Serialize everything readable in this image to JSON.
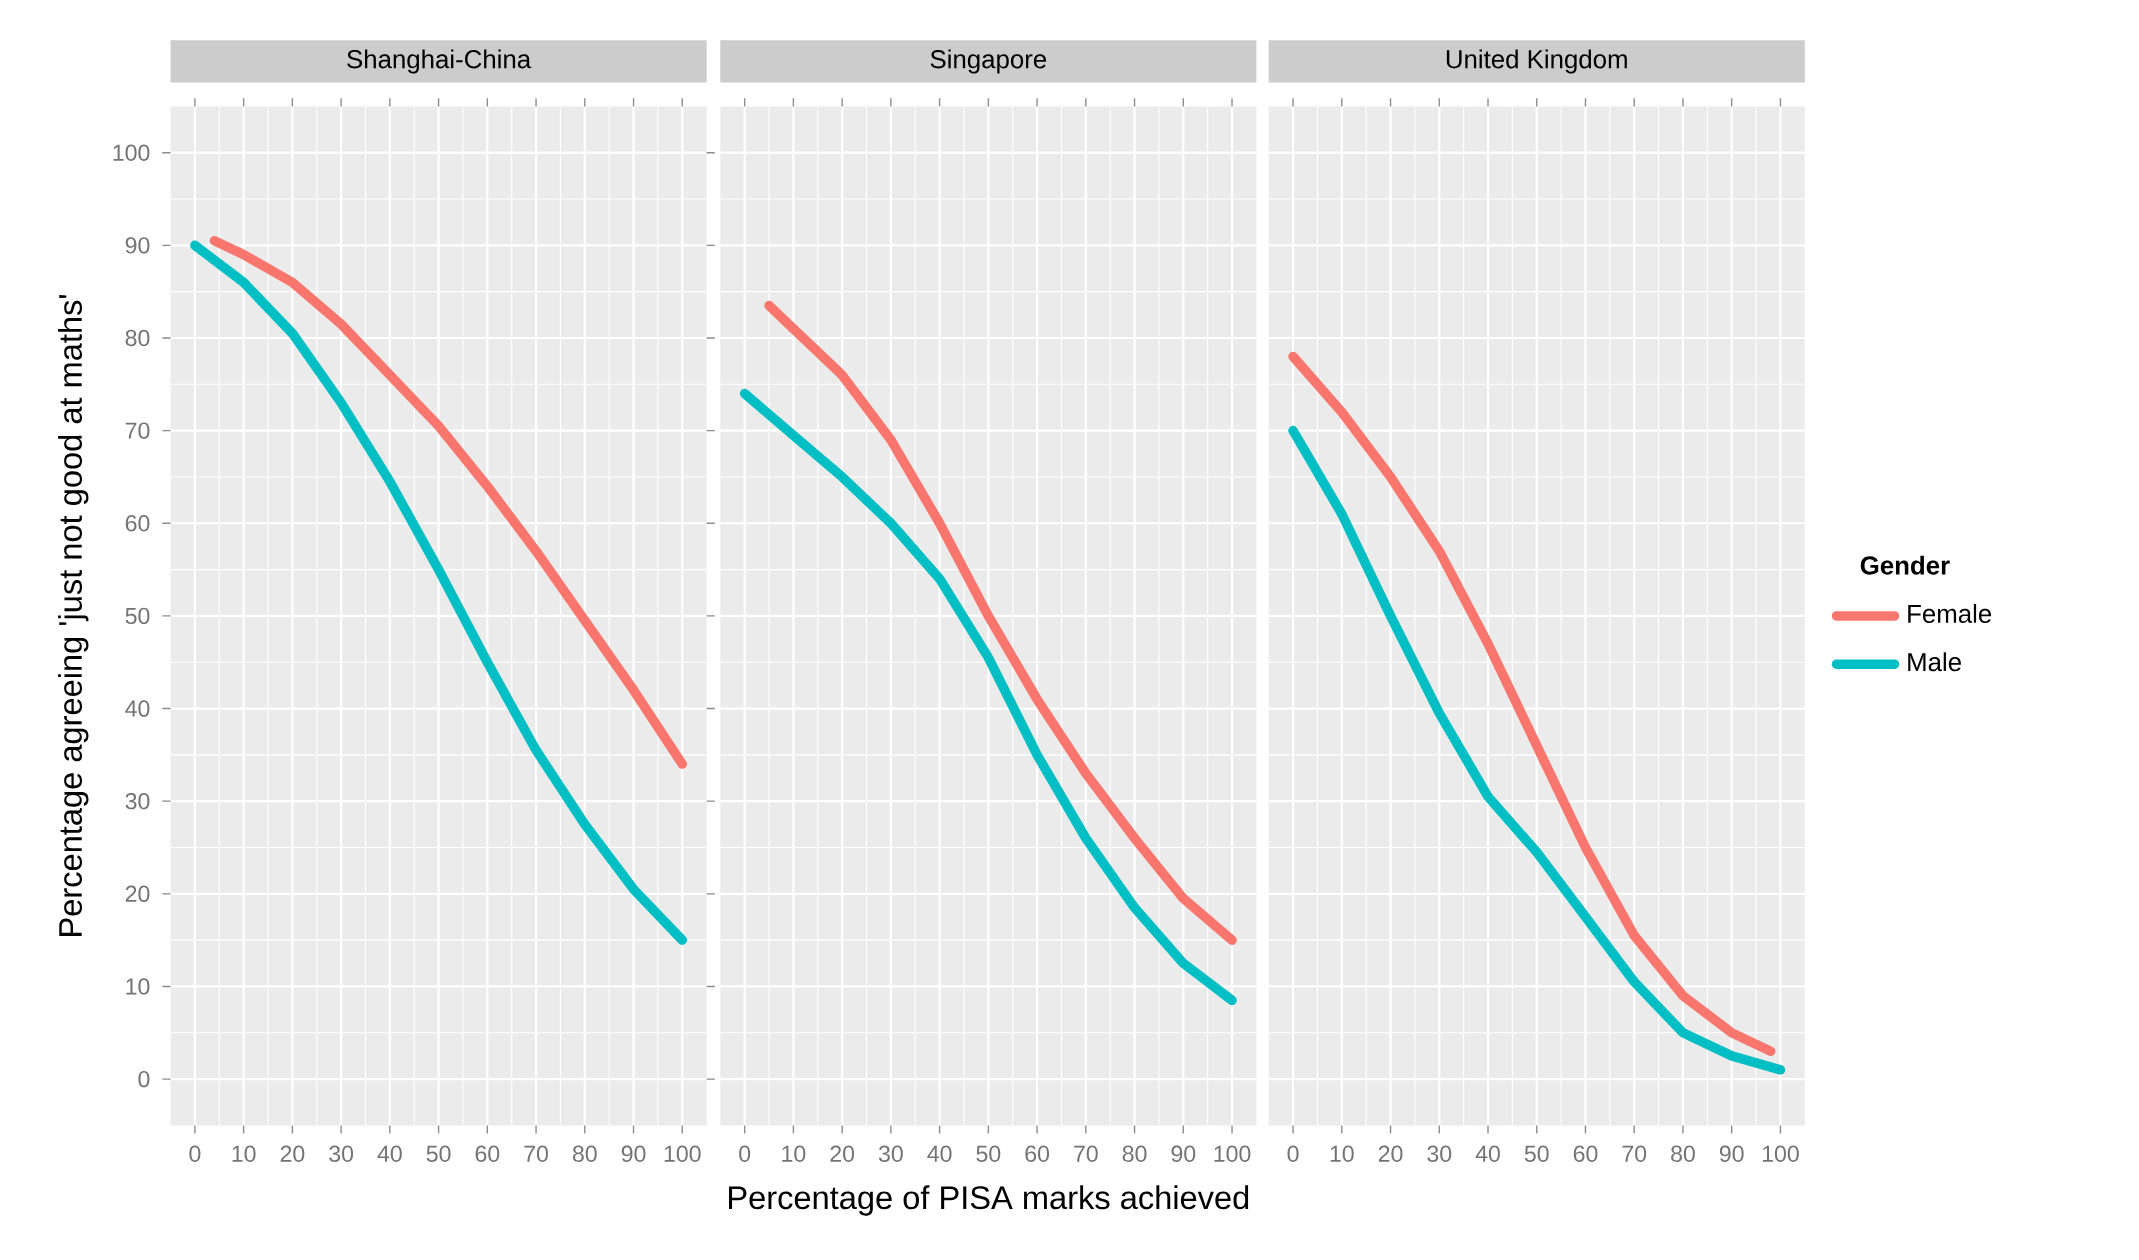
{
  "chart_data": [
    {
      "type": "line",
      "title": "Shanghai-China",
      "ylabel": "Percentage agreeing 'just not good at maths'",
      "xlim": [
        -5,
        105
      ],
      "ylim": [
        -5,
        105
      ],
      "xticks": [
        0,
        10,
        20,
        30,
        40,
        50,
        60,
        70,
        80,
        90,
        100
      ],
      "yticks": [
        0,
        10,
        20,
        30,
        40,
        50,
        60,
        70,
        80,
        90,
        100
      ],
      "grid": true,
      "series": [
        {
          "color": "#f8766d",
          "x": [
            4,
            10,
            20,
            30,
            40,
            50,
            60,
            70,
            80,
            90,
            100
          ],
          "values": [
            90.5,
            89,
            86,
            81.5,
            76,
            70.5,
            64,
            57,
            49.5,
            42,
            34
          ]
        },
        {
          "color": "#00bfc4",
          "x": [
            0,
            10,
            20,
            30,
            40,
            50,
            60,
            70,
            80,
            90,
            100
          ],
          "values": [
            90,
            86,
            80.5,
            73,
            64.5,
            55,
            45,
            35.5,
            27.5,
            20.5,
            15
          ]
        }
      ]
    },
    {
      "type": "line",
      "title": "Singapore",
      "xlabel": "Percentage of PISA marks achieved",
      "xlim": [
        -5,
        105
      ],
      "ylim": [
        -5,
        105
      ],
      "xticks": [
        0,
        10,
        20,
        30,
        40,
        50,
        60,
        70,
        80,
        90,
        100
      ],
      "yticks": [
        0,
        10,
        20,
        30,
        40,
        50,
        60,
        70,
        80,
        90,
        100
      ],
      "grid": true,
      "tick_labels": "x",
      "series": [
        {
          "color": "#f8766d",
          "x": [
            5,
            10,
            20,
            30,
            40,
            50,
            60,
            70,
            80,
            90,
            100
          ],
          "values": [
            83.5,
            81,
            76,
            69,
            60,
            50,
            41,
            33,
            26,
            19.5,
            15
          ]
        },
        {
          "color": "#00bfc4",
          "x": [
            0,
            10,
            20,
            30,
            40,
            50,
            60,
            70,
            80,
            90,
            100
          ],
          "values": [
            74,
            69.5,
            65,
            60,
            54,
            45.5,
            35,
            26,
            18.5,
            12.5,
            8.5
          ]
        }
      ]
    },
    {
      "type": "line",
      "title": "United Kingdom",
      "legend_title": "Gender",
      "legend": "right",
      "xlim": [
        -5,
        105
      ],
      "ylim": [
        -5,
        105
      ],
      "xticks": [
        0,
        10,
        20,
        30,
        40,
        50,
        60,
        70,
        80,
        90,
        100
      ],
      "yticks": [
        0,
        10,
        20,
        30,
        40,
        50,
        60,
        70,
        80,
        90,
        100
      ],
      "grid": true,
      "tick_labels": "x",
      "series": [
        {
          "name": "Female",
          "color": "#f8766d",
          "x": [
            0,
            10,
            20,
            30,
            40,
            50,
            60,
            70,
            80,
            90,
            98
          ],
          "values": [
            78,
            72,
            65,
            57,
            47,
            36,
            25,
            15.5,
            9,
            5,
            3
          ]
        },
        {
          "name": "Male",
          "color": "#00bfc4",
          "x": [
            0,
            10,
            20,
            30,
            40,
            50,
            60,
            70,
            80,
            90,
            100
          ],
          "values": [
            70,
            61,
            50,
            39.5,
            30.5,
            24.5,
            17.5,
            10.5,
            5,
            2.5,
            1
          ]
        }
      ]
    }
  ]
}
